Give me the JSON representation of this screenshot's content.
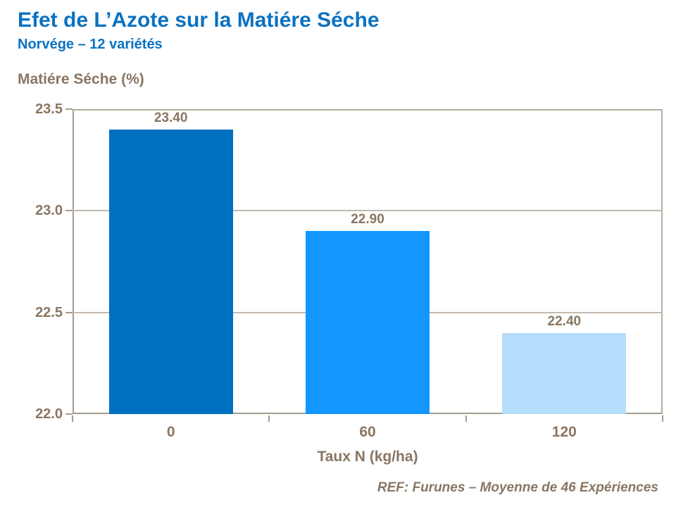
{
  "page": {
    "title": "Efet de L’Azote sur la Matiére Séche",
    "subtitle": "Norvége – 12 variétés",
    "footer": "REF: Furunes – Moyenne de 46 Expériences"
  },
  "chart_data": {
    "type": "bar",
    "title": "Efet de L’Azote sur la Matiére Séche",
    "subtitle": "Norvége – 12 variétés",
    "categories": [
      "0",
      "60",
      "120"
    ],
    "values": [
      23.4,
      22.9,
      22.4
    ],
    "value_labels": [
      "23.40",
      "22.90",
      "22.40"
    ],
    "bar_colors": [
      "#0070C0",
      "#1297FF",
      "#B5DDFC"
    ],
    "xlabel": "Taux N (kg/ha)",
    "ylabel": "Matiére Séche (%)",
    "ylim": [
      22.0,
      23.5
    ],
    "yticks": [
      23.5,
      23.0,
      22.5,
      22.0
    ],
    "ytick_labels": [
      "23.5",
      "23.0",
      "22.5",
      "22.0"
    ],
    "ygrid": [
      23.0,
      22.5
    ],
    "grid": "horizontal-only",
    "legend": "none",
    "annotation": "REF: Furunes – Moyenne de 46 Expériences"
  },
  "colors": {
    "title_blue": "#0B72C2",
    "axis_text": "#897562",
    "gridline": "#C3B9AC",
    "axis_line": "#A59B8E",
    "frame_line": "#B7ADA0"
  }
}
